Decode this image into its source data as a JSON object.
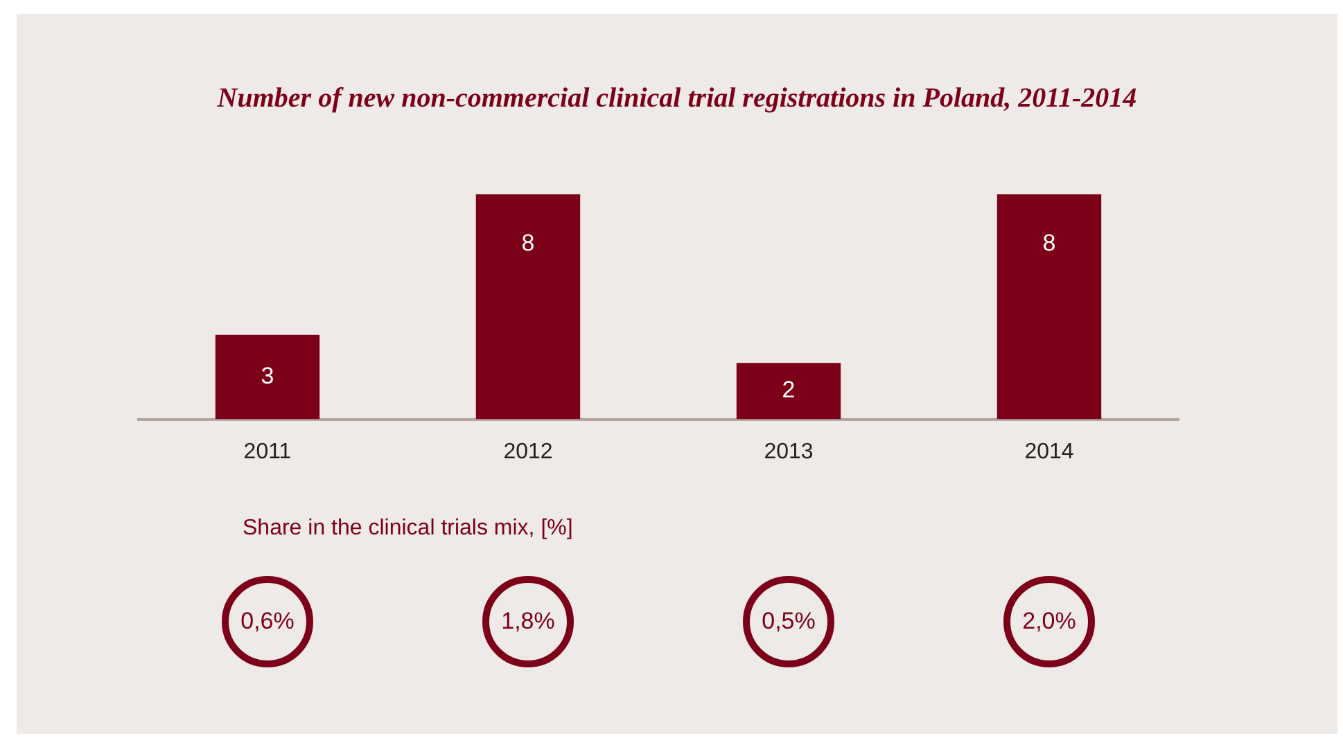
{
  "chart_data": {
    "type": "bar",
    "title": "Number of  new non-commercial clinical trial registrations in Poland, 2011-2014",
    "categories": [
      "2011",
      "2012",
      "2013",
      "2014"
    ],
    "values": [
      3,
      8,
      2,
      8
    ],
    "color": "#7d0019",
    "data_labels": true,
    "grid": false,
    "legend": false,
    "annotations": [
      "Share in the clinical trials mix, [%]",
      "0,6%",
      "1,8%",
      "0,5%",
      "2,0%"
    ]
  }
}
